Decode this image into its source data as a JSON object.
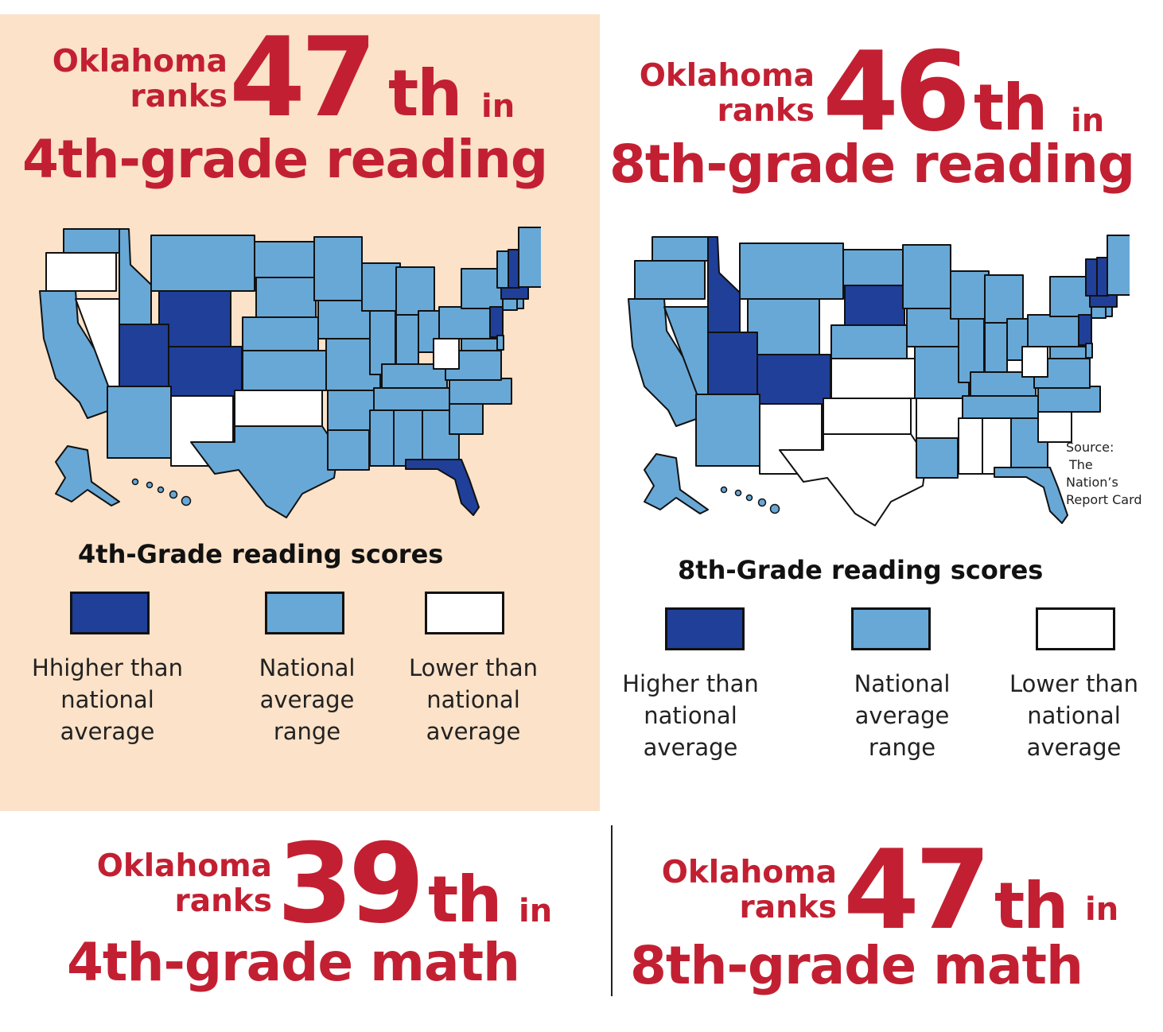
{
  "colors": {
    "headline": "#c22032",
    "panel_background": "#fbe2c8",
    "higher": "#1f3f99",
    "national_range": "#68a8d6",
    "lower": "#ffffff"
  },
  "panels": [
    {
      "state_line1": "Oklahoma",
      "state_line2": "ranks",
      "rank": "47",
      "suffix": "th",
      "in": "in",
      "subject": "4th-grade reading"
    },
    {
      "state_line1": "Oklahoma",
      "state_line2": "ranks",
      "rank": "46",
      "suffix": "th",
      "in": "in",
      "subject": "8th-grade reading"
    },
    {
      "state_line1": "Oklahoma",
      "state_line2": "ranks",
      "rank": "39",
      "suffix": "th",
      "in": "in",
      "subject": "4th-grade math"
    },
    {
      "state_line1": "Oklahoma",
      "state_line2": "ranks",
      "rank": "47",
      "suffix": "th",
      "in": "in",
      "subject": "8th-grade math"
    }
  ],
  "maps": [
    {
      "legend_title": "4th-Grade reading scores",
      "legend": [
        {
          "category": "higher",
          "line1": "Hhigher than",
          "line2": "national",
          "line3": "average"
        },
        {
          "category": "national_range",
          "line1": "National",
          "line2": "average",
          "line3": "range"
        },
        {
          "category": "lower",
          "line1": "Lower than",
          "line2": "national",
          "line3": "average"
        }
      ],
      "states": {
        "higher": [
          "Wyoming",
          "Utah",
          "Colorado",
          "Florida",
          "New Hampshire",
          "Massachusetts",
          "New Jersey"
        ],
        "lower": [
          "Oregon",
          "Nevada",
          "New Mexico",
          "Oklahoma",
          "West Virginia"
        ]
      }
    },
    {
      "legend_title": "8th-Grade reading scores",
      "legend": [
        {
          "category": "higher",
          "line1": "Higher than",
          "line2": "national",
          "line3": "average"
        },
        {
          "category": "national_range",
          "line1": "National",
          "line2": "average",
          "line3": "range"
        },
        {
          "category": "lower",
          "line1": "Lower than",
          "line2": "national",
          "line3": "average"
        }
      ],
      "states": {
        "higher": [
          "Idaho",
          "Utah",
          "Colorado",
          "South Dakota",
          "Vermont",
          "New Hampshire",
          "Massachusetts",
          "New Jersey"
        ],
        "lower": [
          "Kansas",
          "New Mexico",
          "Oklahoma",
          "Texas",
          "Arkansas",
          "Mississippi",
          "Alabama",
          "South Carolina",
          "West Virginia"
        ]
      }
    }
  ],
  "source": {
    "line1": "Source:",
    "line2": "The",
    "line3": "Nation’s",
    "line4": "Report Card"
  }
}
